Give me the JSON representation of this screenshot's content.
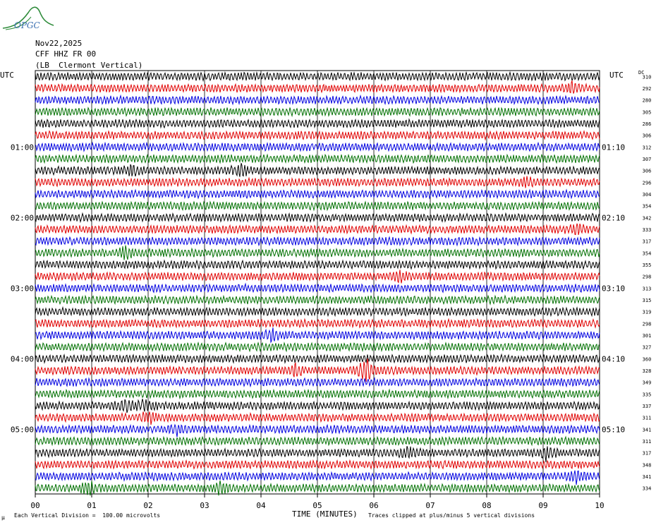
{
  "logo_text": "OPGC",
  "header": {
    "date": "Nov22,2025",
    "channel": "CFF HHZ FR 00",
    "station": "(LB  Clermont Vertical)"
  },
  "utc_label_left": "UTC",
  "utc_label_right": "UTC",
  "dc_label": "DC",
  "footer": {
    "scale_note": "Each Vertical Division =  100.00 microvolts",
    "clip_note": "Traces clipped at plus/minus 5 vertical divisions",
    "scale_mark": "μ"
  },
  "chart_data": {
    "type": "line",
    "title": "CFF HHZ FR 00",
    "xlabel": "TIME (MINUTES)",
    "ylabel": "",
    "x_ticks": [
      "00",
      "01",
      "02",
      "03",
      "04",
      "05",
      "06",
      "07",
      "08",
      "09",
      "10"
    ],
    "xlim": [
      0,
      10
    ],
    "grid": true,
    "trace_colors": [
      "#000000",
      "#e00000",
      "#0000e0",
      "#007000"
    ],
    "left_time_labels": [
      "01:00",
      "02:00",
      "03:00",
      "04:00",
      "05:00"
    ],
    "right_time_labels": [
      "01:10",
      "02:10",
      "03:10",
      "04:10",
      "05:10"
    ],
    "time_label_rows": [
      6,
      12,
      18,
      24,
      30
    ],
    "dc_offsets": [
      310,
      292,
      280,
      305,
      286,
      306,
      312,
      307,
      306,
      296,
      304,
      354,
      342,
      333,
      317,
      354,
      355,
      298,
      313,
      315,
      319,
      298,
      301,
      327,
      360,
      328,
      349,
      335,
      337,
      311,
      341,
      311,
      317,
      348,
      341,
      334
    ],
    "events": [
      {
        "row": 25,
        "minute": 5.85,
        "amplitude": 3.2
      },
      {
        "row": 25,
        "minute": 4.6,
        "amplitude": 1.6
      },
      {
        "row": 28,
        "minute": 1.6,
        "amplitude": 1.4
      },
      {
        "row": 28,
        "minute": 1.95,
        "amplitude": 1.3
      },
      {
        "row": 29,
        "minute": 2.0,
        "amplitude": 1.3
      },
      {
        "row": 22,
        "minute": 4.2,
        "amplitude": 1.3
      },
      {
        "row": 15,
        "minute": 1.6,
        "amplitude": 1.3
      },
      {
        "row": 35,
        "minute": 0.95,
        "amplitude": 1.4
      },
      {
        "row": 35,
        "minute": 3.25,
        "amplitude": 1.2
      },
      {
        "row": 34,
        "minute": 9.6,
        "amplitude": 1.3
      },
      {
        "row": 8,
        "minute": 1.7,
        "amplitude": 1.2
      },
      {
        "row": 8,
        "minute": 3.65,
        "amplitude": 1.3
      },
      {
        "row": 17,
        "minute": 6.45,
        "amplitude": 1.2
      },
      {
        "row": 32,
        "minute": 6.6,
        "amplitude": 1.2
      },
      {
        "row": 32,
        "minute": 9.05,
        "amplitude": 1.3
      },
      {
        "row": 13,
        "minute": 9.6,
        "amplitude": 1.1
      },
      {
        "row": 1,
        "minute": 9.5,
        "amplitude": 1.1
      },
      {
        "row": 30,
        "minute": 2.5,
        "amplitude": 1.1
      },
      {
        "row": 9,
        "minute": 8.7,
        "amplitude": 1.1
      }
    ]
  }
}
